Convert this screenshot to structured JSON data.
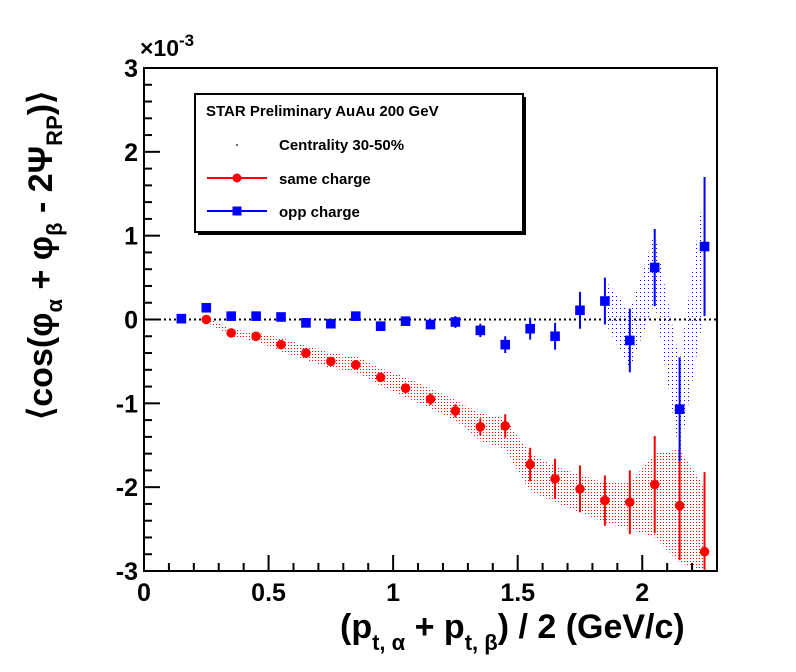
{
  "chart_data": {
    "type": "scatter",
    "title": "",
    "xlabel": "(p_t,α + p_t,β) / 2  (GeV/c)",
    "ylabel": "⟨cos(φ_α + φ_β - 2Ψ_RP)⟩",
    "xlim": [
      0,
      2.3
    ],
    "ylim": [
      -3,
      3
    ],
    "y_scale_label": "×10",
    "y_scale_exponent": "-3",
    "x_ticks": [
      0,
      0.5,
      1,
      1.5,
      2
    ],
    "x_tick_labels": [
      "0",
      "0.5",
      "1",
      "1.5",
      "2"
    ],
    "y_ticks": [
      -3,
      -2,
      -1,
      0,
      1,
      2,
      3
    ],
    "y_tick_labels": [
      "-3",
      "-2",
      "-1",
      "0",
      "1",
      "2",
      "3"
    ],
    "zero_line": true,
    "legend": {
      "title": "STAR Preliminary AuAu 200 GeV",
      "entries": [
        "Centrality 30-50%",
        "same charge",
        "opp charge"
      ]
    },
    "series": [
      {
        "name": "same charge",
        "color": "#ff0000",
        "marker": "circle",
        "x": [
          0.25,
          0.35,
          0.45,
          0.55,
          0.65,
          0.75,
          0.85,
          0.95,
          1.05,
          1.15,
          1.25,
          1.35,
          1.45,
          1.55,
          1.65,
          1.75,
          1.85,
          1.95,
          2.05,
          2.15,
          2.25
        ],
        "y": [
          0.0,
          -0.16,
          -0.2,
          -0.3,
          -0.4,
          -0.5,
          -0.54,
          -0.69,
          -0.82,
          -0.95,
          -1.09,
          -1.28,
          -1.27,
          -1.73,
          -1.9,
          -2.02,
          -2.16,
          -2.18,
          -1.97,
          -2.22,
          -2.77
        ],
        "err": [
          0.02,
          0.02,
          0.02,
          0.02,
          0.03,
          0.03,
          0.03,
          0.04,
          0.06,
          0.07,
          0.08,
          0.1,
          0.14,
          0.2,
          0.24,
          0.28,
          0.3,
          0.38,
          0.58,
          0.65,
          0.95
        ],
        "band_low": [
          -0.03,
          -0.2,
          -0.26,
          -0.38,
          -0.48,
          -0.58,
          -0.63,
          -0.79,
          -0.93,
          -1.06,
          -1.2,
          -1.45,
          -1.55,
          -2.05,
          -2.18,
          -2.3,
          -2.42,
          -2.5,
          -2.6,
          -2.9,
          -3.0
        ],
        "band_high": [
          0.03,
          -0.12,
          -0.15,
          -0.22,
          -0.31,
          -0.4,
          -0.44,
          -0.58,
          -0.69,
          -0.82,
          -0.96,
          -1.12,
          -1.18,
          -1.6,
          -1.75,
          -1.85,
          -1.95,
          -1.95,
          -1.6,
          -1.55,
          -2.0
        ]
      },
      {
        "name": "opp charge",
        "color": "#0000ff",
        "marker": "square",
        "x": [
          0.15,
          0.25,
          0.35,
          0.45,
          0.55,
          0.65,
          0.75,
          0.85,
          0.95,
          1.05,
          1.15,
          1.25,
          1.35,
          1.45,
          1.55,
          1.65,
          1.75,
          1.85,
          1.95,
          2.05,
          2.15,
          2.25
        ],
        "y": [
          0.01,
          0.14,
          0.04,
          0.04,
          0.03,
          -0.04,
          -0.05,
          0.04,
          -0.08,
          -0.02,
          -0.06,
          -0.03,
          -0.13,
          -0.3,
          -0.11,
          -0.2,
          0.11,
          0.22,
          -0.25,
          0.62,
          -1.07,
          0.87
        ],
        "err": [
          0.02,
          0.02,
          0.02,
          0.02,
          0.02,
          0.02,
          0.03,
          0.03,
          0.03,
          0.04,
          0.05,
          0.07,
          0.08,
          0.1,
          0.13,
          0.16,
          0.22,
          0.28,
          0.38,
          0.46,
          0.62,
          0.83
        ]
      }
    ],
    "band_note": "dotted systematic bands around each series"
  }
}
